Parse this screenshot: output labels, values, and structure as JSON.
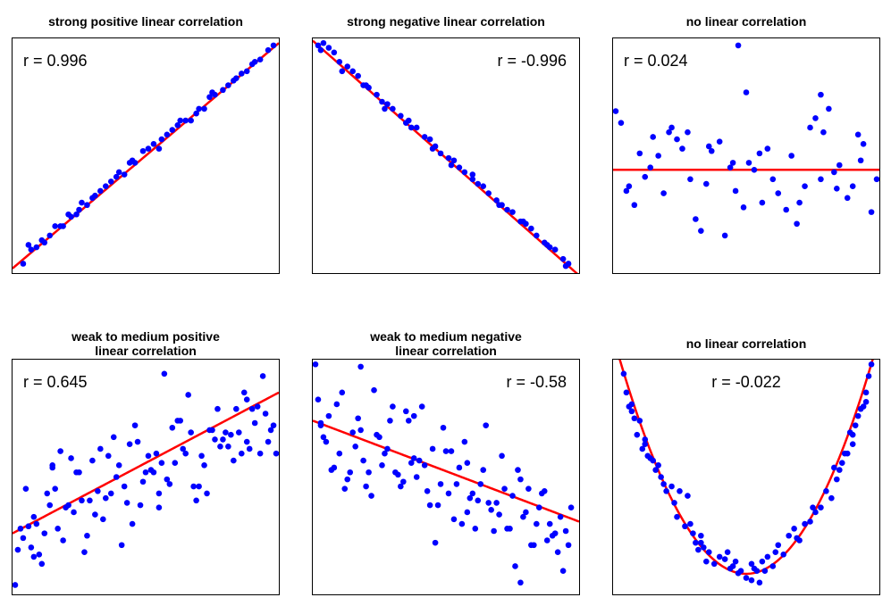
{
  "colors": {
    "points": "#0000ff",
    "fit": "#ff0000",
    "frame": "#000000",
    "background": "#ffffff"
  },
  "chart_data": [
    {
      "type": "scatter",
      "title": "strong positive linear correlation",
      "annotation": "r = 0.996",
      "annotation_position": "top-left",
      "xlim": [
        0,
        1
      ],
      "ylim": [
        0,
        1
      ],
      "axes_visible": false,
      "grid": false,
      "fit": {
        "type": "linear",
        "slope": 0.96,
        "intercept": 0.02
      },
      "points": {
        "x": [
          0.04,
          0.07,
          0.09,
          0.12,
          0.14,
          0.16,
          0.19,
          0.21,
          0.22,
          0.24,
          0.26,
          0.28,
          0.31,
          0.33,
          0.35,
          0.37,
          0.4,
          0.42,
          0.44,
          0.46,
          0.49,
          0.51,
          0.53,
          0.56,
          0.58,
          0.6,
          0.62,
          0.65,
          0.67,
          0.7,
          0.72,
          0.74,
          0.76,
          0.79,
          0.81,
          0.83,
          0.86,
          0.88,
          0.9,
          0.93,
          0.96,
          0.06,
          0.11,
          0.18,
          0.25,
          0.3,
          0.39,
          0.45,
          0.55,
          0.63,
          0.69,
          0.75,
          0.84,
          0.91,
          0.98
        ],
        "y": [
          0.04,
          0.1,
          0.11,
          0.13,
          0.16,
          0.2,
          0.2,
          0.25,
          0.24,
          0.25,
          0.3,
          0.29,
          0.33,
          0.35,
          0.37,
          0.39,
          0.43,
          0.42,
          0.47,
          0.47,
          0.52,
          0.53,
          0.55,
          0.57,
          0.59,
          0.61,
          0.63,
          0.65,
          0.65,
          0.7,
          0.7,
          0.75,
          0.76,
          0.78,
          0.8,
          0.82,
          0.85,
          0.86,
          0.89,
          0.91,
          0.95,
          0.12,
          0.14,
          0.2,
          0.27,
          0.32,
          0.41,
          0.48,
          0.53,
          0.65,
          0.68,
          0.77,
          0.83,
          0.9,
          0.97
        ]
      }
    },
    {
      "type": "scatter",
      "title": "strong negative linear correlation",
      "annotation": "r = -0.996",
      "annotation_position": "top-right",
      "xlim": [
        0,
        1
      ],
      "ylim": [
        0,
        1
      ],
      "axes_visible": false,
      "grid": false,
      "fit": {
        "type": "linear",
        "slope": -1.0,
        "intercept": 0.99
      },
      "points": {
        "x": [
          0.02,
          0.04,
          0.06,
          0.08,
          0.1,
          0.13,
          0.15,
          0.17,
          0.19,
          0.21,
          0.24,
          0.26,
          0.28,
          0.3,
          0.33,
          0.35,
          0.37,
          0.39,
          0.42,
          0.44,
          0.46,
          0.48,
          0.51,
          0.53,
          0.55,
          0.57,
          0.6,
          0.62,
          0.64,
          0.66,
          0.69,
          0.71,
          0.73,
          0.75,
          0.78,
          0.8,
          0.82,
          0.84,
          0.87,
          0.89,
          0.91,
          0.94,
          0.96,
          0.03,
          0.11,
          0.2,
          0.27,
          0.36,
          0.45,
          0.52,
          0.6,
          0.7,
          0.79,
          0.88,
          0.95
        ],
        "y": [
          0.97,
          0.98,
          0.96,
          0.94,
          0.9,
          0.88,
          0.86,
          0.84,
          0.8,
          0.79,
          0.76,
          0.73,
          0.72,
          0.7,
          0.67,
          0.64,
          0.62,
          0.62,
          0.58,
          0.57,
          0.54,
          0.51,
          0.49,
          0.48,
          0.45,
          0.43,
          0.4,
          0.38,
          0.37,
          0.34,
          0.31,
          0.29,
          0.27,
          0.26,
          0.22,
          0.21,
          0.19,
          0.16,
          0.13,
          0.11,
          0.1,
          0.06,
          0.04,
          0.95,
          0.86,
          0.8,
          0.7,
          0.65,
          0.53,
          0.46,
          0.42,
          0.29,
          0.22,
          0.12,
          0.03
        ]
      }
    },
    {
      "type": "scatter",
      "title": "no linear correlation",
      "annotation": "r = 0.024",
      "annotation_position": "top-left",
      "xlim": [
        0,
        1
      ],
      "ylim": [
        0,
        1
      ],
      "axes_visible": false,
      "grid": false,
      "fit": {
        "type": "linear",
        "slope": 0.0,
        "intercept": 0.44
      },
      "points": {
        "x": [
          0.01,
          0.03,
          0.06,
          0.08,
          0.1,
          0.12,
          0.15,
          0.17,
          0.19,
          0.22,
          0.24,
          0.26,
          0.28,
          0.31,
          0.33,
          0.35,
          0.37,
          0.4,
          0.42,
          0.44,
          0.46,
          0.49,
          0.51,
          0.53,
          0.56,
          0.58,
          0.6,
          0.62,
          0.65,
          0.67,
          0.69,
          0.72,
          0.74,
          0.76,
          0.78,
          0.81,
          0.83,
          0.85,
          0.88,
          0.9,
          0.92,
          0.94,
          0.97,
          0.99,
          0.05,
          0.14,
          0.21,
          0.29,
          0.36,
          0.45,
          0.55,
          0.7,
          0.79,
          0.84,
          0.93,
          0.47,
          0.5,
          0.78
        ],
        "y": [
          0.69,
          0.64,
          0.37,
          0.29,
          0.51,
          0.41,
          0.58,
          0.5,
          0.34,
          0.62,
          0.57,
          0.53,
          0.6,
          0.23,
          0.18,
          0.38,
          0.52,
          0.56,
          0.16,
          0.45,
          0.35,
          0.28,
          0.47,
          0.44,
          0.3,
          0.53,
          0.4,
          0.34,
          0.27,
          0.5,
          0.21,
          0.37,
          0.62,
          0.66,
          0.4,
          0.7,
          0.43,
          0.46,
          0.32,
          0.37,
          0.59,
          0.55,
          0.26,
          0.4,
          0.35,
          0.45,
          0.6,
          0.4,
          0.54,
          0.47,
          0.51,
          0.3,
          0.6,
          0.36,
          0.48,
          0.97,
          0.77,
          0.76
        ]
      }
    },
    {
      "type": "scatter",
      "title": "weak to medium positive\nlinear correlation",
      "annotation": "r = 0.645",
      "annotation_position": "top-left",
      "xlim": [
        0,
        1
      ],
      "ylim": [
        0,
        1
      ],
      "axes_visible": false,
      "grid": false,
      "fit": {
        "type": "linear",
        "slope": 0.6,
        "intercept": 0.26
      },
      "points": {
        "x": [
          0.01,
          0.03,
          0.05,
          0.07,
          0.09,
          0.11,
          0.13,
          0.15,
          0.17,
          0.19,
          0.21,
          0.23,
          0.25,
          0.27,
          0.29,
          0.31,
          0.33,
          0.35,
          0.37,
          0.39,
          0.41,
          0.43,
          0.45,
          0.47,
          0.49,
          0.51,
          0.53,
          0.55,
          0.57,
          0.59,
          0.61,
          0.63,
          0.65,
          0.67,
          0.69,
          0.71,
          0.73,
          0.75,
          0.77,
          0.79,
          0.81,
          0.83,
          0.85,
          0.87,
          0.89,
          0.91,
          0.93,
          0.95,
          0.97,
          0.02,
          0.06,
          0.1,
          0.14,
          0.18,
          0.22,
          0.26,
          0.3,
          0.34,
          0.38,
          0.42,
          0.46,
          0.5,
          0.54,
          0.58,
          0.62,
          0.66,
          0.7,
          0.74,
          0.78,
          0.82,
          0.86,
          0.9,
          0.94,
          0.04,
          0.08,
          0.12,
          0.16,
          0.2,
          0.24,
          0.28,
          0.32,
          0.36,
          0.4,
          0.44,
          0.48,
          0.52,
          0.56,
          0.6,
          0.64,
          0.68,
          0.72,
          0.76,
          0.8,
          0.84,
          0.88,
          0.92,
          0.96,
          0.98,
          0.99,
          0.08,
          0.15,
          0.55,
          0.88
        ],
        "y": [
          0.04,
          0.28,
          0.45,
          0.2,
          0.3,
          0.13,
          0.43,
          0.54,
          0.28,
          0.23,
          0.38,
          0.35,
          0.52,
          0.18,
          0.4,
          0.34,
          0.62,
          0.41,
          0.43,
          0.5,
          0.21,
          0.39,
          0.3,
          0.65,
          0.48,
          0.59,
          0.52,
          0.37,
          0.94,
          0.47,
          0.56,
          0.74,
          0.6,
          0.69,
          0.4,
          0.59,
          0.43,
          0.7,
          0.79,
          0.66,
          0.63,
          0.57,
          0.69,
          0.86,
          0.62,
          0.73,
          0.6,
          0.77,
          0.7,
          0.19,
          0.29,
          0.17,
          0.38,
          0.61,
          0.58,
          0.4,
          0.57,
          0.32,
          0.67,
          0.46,
          0.72,
          0.52,
          0.6,
          0.49,
          0.74,
          0.85,
          0.46,
          0.7,
          0.63,
          0.68,
          0.6,
          0.79,
          0.93,
          0.24,
          0.33,
          0.26,
          0.45,
          0.37,
          0.52,
          0.25,
          0.44,
          0.59,
          0.55,
          0.64,
          0.38,
          0.53,
          0.56,
          0.71,
          0.62,
          0.46,
          0.55,
          0.66,
          0.69,
          0.79,
          0.65,
          0.8,
          0.65,
          0.72,
          0.6,
          0.16,
          0.55,
          0.43,
          0.83
        ]
      }
    },
    {
      "type": "scatter",
      "title": "weak to medium negative\nlinear correlation",
      "annotation": "r = -0.58",
      "annotation_position": "top-right",
      "xlim": [
        0,
        1
      ],
      "ylim": [
        0,
        1
      ],
      "axes_visible": false,
      "grid": false,
      "fit": {
        "type": "linear",
        "slope": -0.43,
        "intercept": 0.74
      },
      "points": {
        "x": [
          0.01,
          0.03,
          0.05,
          0.07,
          0.09,
          0.11,
          0.13,
          0.15,
          0.17,
          0.19,
          0.21,
          0.23,
          0.25,
          0.27,
          0.29,
          0.31,
          0.33,
          0.35,
          0.37,
          0.39,
          0.41,
          0.43,
          0.45,
          0.47,
          0.49,
          0.51,
          0.53,
          0.55,
          0.57,
          0.59,
          0.61,
          0.63,
          0.65,
          0.67,
          0.69,
          0.71,
          0.73,
          0.75,
          0.77,
          0.79,
          0.81,
          0.83,
          0.85,
          0.87,
          0.89,
          0.91,
          0.93,
          0.95,
          0.97,
          0.02,
          0.06,
          0.1,
          0.14,
          0.18,
          0.22,
          0.26,
          0.3,
          0.34,
          0.38,
          0.42,
          0.46,
          0.5,
          0.54,
          0.58,
          0.62,
          0.66,
          0.7,
          0.74,
          0.78,
          0.82,
          0.86,
          0.9,
          0.94,
          0.04,
          0.08,
          0.12,
          0.16,
          0.2,
          0.24,
          0.28,
          0.32,
          0.36,
          0.4,
          0.44,
          0.48,
          0.52,
          0.56,
          0.6,
          0.64,
          0.68,
          0.72,
          0.76,
          0.8,
          0.84,
          0.88,
          0.92,
          0.96,
          0.03,
          0.18,
          0.38,
          0.58,
          0.78
        ],
        "y": [
          0.98,
          0.72,
          0.65,
          0.53,
          0.81,
          0.86,
          0.49,
          0.69,
          0.75,
          0.57,
          0.52,
          0.87,
          0.67,
          0.6,
          0.74,
          0.52,
          0.46,
          0.78,
          0.56,
          0.5,
          0.8,
          0.44,
          0.62,
          0.38,
          0.71,
          0.43,
          0.32,
          0.54,
          0.65,
          0.41,
          0.28,
          0.47,
          0.72,
          0.36,
          0.39,
          0.59,
          0.28,
          0.42,
          0.53,
          0.33,
          0.45,
          0.21,
          0.37,
          0.44,
          0.3,
          0.26,
          0.33,
          0.27,
          0.37,
          0.83,
          0.76,
          0.6,
          0.52,
          0.7,
          0.42,
          0.55,
          0.8,
          0.48,
          0.58,
          0.55,
          0.22,
          0.61,
          0.47,
          0.56,
          0.4,
          0.39,
          0.34,
          0.28,
          0.49,
          0.21,
          0.43,
          0.25,
          0.1,
          0.67,
          0.54,
          0.45,
          0.63,
          0.46,
          0.68,
          0.62,
          0.51,
          0.74,
          0.57,
          0.38,
          0.47,
          0.61,
          0.3,
          0.43,
          0.53,
          0.27,
          0.45,
          0.12,
          0.35,
          0.3,
          0.23,
          0.18,
          0.21,
          0.73,
          0.97,
          0.76,
          0.35,
          0.05
        ]
      }
    },
    {
      "type": "scatter",
      "title": "no linear correlation",
      "annotation": "r = -0.022",
      "annotation_position": "top-center",
      "xlim": [
        0,
        1
      ],
      "ylim": [
        0,
        1
      ],
      "axes_visible": false,
      "grid": false,
      "fit": {
        "type": "quadratic",
        "a": 4.05,
        "b": -4.05,
        "c": 1.1
      },
      "points": {
        "x": [
          0.04,
          0.05,
          0.06,
          0.07,
          0.08,
          0.09,
          0.1,
          0.11,
          0.12,
          0.13,
          0.14,
          0.15,
          0.16,
          0.17,
          0.18,
          0.19,
          0.2,
          0.22,
          0.23,
          0.25,
          0.27,
          0.29,
          0.3,
          0.31,
          0.32,
          0.33,
          0.34,
          0.35,
          0.36,
          0.38,
          0.4,
          0.42,
          0.44,
          0.45,
          0.46,
          0.48,
          0.5,
          0.52,
          0.53,
          0.54,
          0.55,
          0.56,
          0.57,
          0.58,
          0.6,
          0.62,
          0.64,
          0.66,
          0.68,
          0.7,
          0.72,
          0.74,
          0.76,
          0.78,
          0.8,
          0.82,
          0.84,
          0.85,
          0.86,
          0.87,
          0.88,
          0.89,
          0.9,
          0.91,
          0.92,
          0.93,
          0.94,
          0.95,
          0.96,
          0.97,
          0.07,
          0.12,
          0.24,
          0.28,
          0.33,
          0.43,
          0.47,
          0.52,
          0.61,
          0.69,
          0.75,
          0.83,
          0.9,
          0.95
        ],
        "y": [
          0.94,
          0.86,
          0.8,
          0.78,
          0.75,
          0.68,
          0.74,
          0.62,
          0.64,
          0.59,
          0.58,
          0.57,
          0.53,
          0.55,
          0.5,
          0.47,
          0.44,
          0.46,
          0.39,
          0.44,
          0.29,
          0.3,
          0.26,
          0.22,
          0.19,
          0.25,
          0.2,
          0.14,
          0.18,
          0.13,
          0.16,
          0.15,
          0.11,
          0.12,
          0.14,
          0.1,
          0.07,
          0.13,
          0.11,
          0.1,
          0.05,
          0.14,
          0.1,
          0.16,
          0.12,
          0.21,
          0.17,
          0.25,
          0.28,
          0.23,
          0.3,
          0.31,
          0.35,
          0.37,
          0.44,
          0.41,
          0.49,
          0.53,
          0.56,
          0.6,
          0.6,
          0.69,
          0.64,
          0.72,
          0.76,
          0.79,
          0.8,
          0.86,
          0.93,
          0.98,
          0.81,
          0.66,
          0.33,
          0.42,
          0.22,
          0.18,
          0.09,
          0.06,
          0.18,
          0.24,
          0.37,
          0.54,
          0.68,
          0.82
        ]
      }
    }
  ]
}
